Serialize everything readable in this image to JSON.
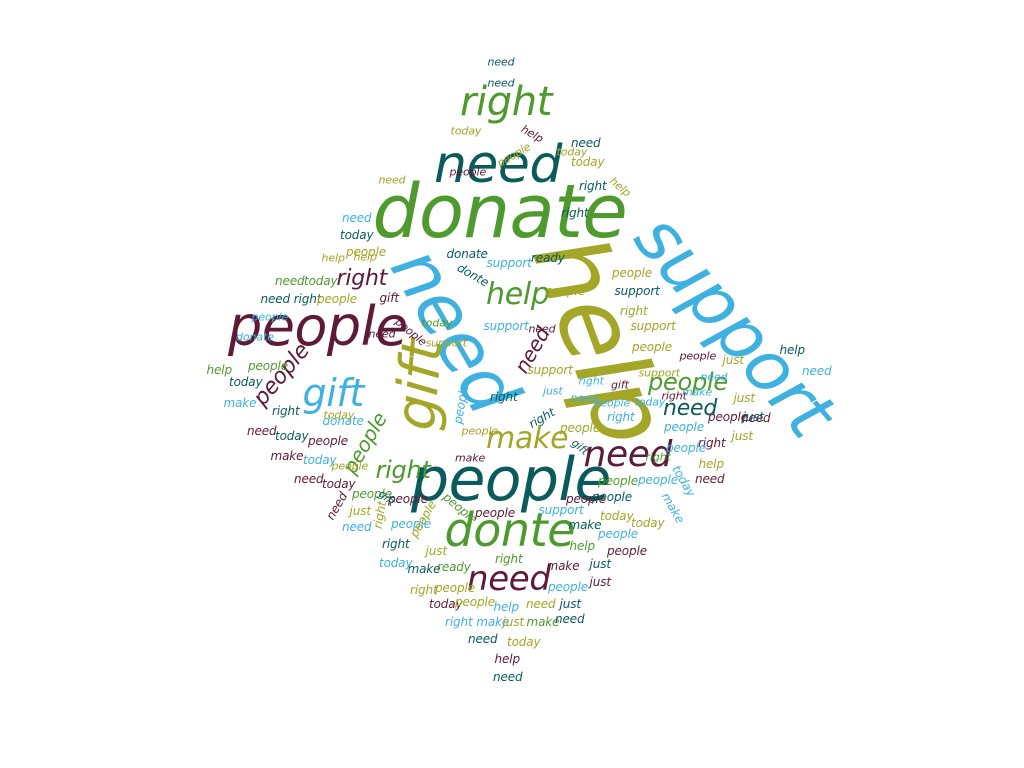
{
  "colors": {
    "maroon": "#5e1a37",
    "olive": "#a3a626",
    "green": "#4e9a2e",
    "teal": "#0b5a5c",
    "sky": "#3eb1e0"
  },
  "words": [
    {
      "text": "help",
      "color": "olive"
    },
    {
      "text": "support",
      "color": "sky"
    },
    {
      "text": "donate",
      "color": "green"
    },
    {
      "text": "need",
      "color": "sky"
    },
    {
      "text": "people",
      "color": "teal"
    },
    {
      "text": "need",
      "color": "teal"
    },
    {
      "text": "people",
      "color": "maroon"
    },
    {
      "text": "gift",
      "color": "olive"
    },
    {
      "text": "donte",
      "color": "green"
    },
    {
      "text": "right",
      "color": "green"
    },
    {
      "text": "need",
      "color": "maroon"
    },
    {
      "text": "need",
      "color": "maroon"
    },
    {
      "text": "gift",
      "color": "sky"
    },
    {
      "text": "make",
      "color": "olive"
    },
    {
      "text": "help",
      "color": "green"
    },
    {
      "text": "people",
      "color": "green"
    },
    {
      "text": "need",
      "color": "teal"
    },
    {
      "text": "right",
      "color": "green"
    },
    {
      "text": "right",
      "color": "maroon"
    },
    {
      "text": "people",
      "color": "maroon"
    },
    {
      "text": "people",
      "color": "green"
    },
    {
      "text": "need",
      "color": "maroon"
    },
    {
      "text": "need",
      "color": "teal"
    },
    {
      "text": "need",
      "color": "teal"
    },
    {
      "text": "today",
      "color": "olive"
    },
    {
      "text": "help",
      "color": "maroon"
    },
    {
      "text": "need",
      "color": "teal"
    },
    {
      "text": "today",
      "color": "olive"
    },
    {
      "text": "need",
      "color": "olive"
    },
    {
      "text": "right",
      "color": "teal"
    },
    {
      "text": "help",
      "color": "olive"
    },
    {
      "text": "need",
      "color": "sky"
    },
    {
      "text": "today",
      "color": "teal"
    },
    {
      "text": "help",
      "color": "olive"
    },
    {
      "text": "people",
      "color": "olive"
    },
    {
      "text": "donate",
      "color": "teal"
    },
    {
      "text": "need",
      "color": "green"
    },
    {
      "text": "today",
      "color": "green"
    },
    {
      "text": "need right",
      "color": "teal"
    },
    {
      "text": "people",
      "color": "olive"
    },
    {
      "text": "gift",
      "color": "maroon"
    },
    {
      "text": "donte",
      "color": "teal"
    },
    {
      "text": "support",
      "color": "sky"
    },
    {
      "text": "ready",
      "color": "teal"
    },
    {
      "text": "people",
      "color": "olive"
    },
    {
      "text": "people",
      "color": "olive"
    },
    {
      "text": "support",
      "color": "teal"
    },
    {
      "text": "right",
      "color": "olive"
    },
    {
      "text": "support",
      "color": "olive"
    },
    {
      "text": "people",
      "color": "olive"
    },
    {
      "text": "support",
      "color": "sky"
    },
    {
      "text": "people",
      "color": "maroon"
    },
    {
      "text": "support",
      "color": "olive"
    },
    {
      "text": "help",
      "color": "green"
    },
    {
      "text": "people",
      "color": "green"
    },
    {
      "text": "today",
      "color": "teal"
    },
    {
      "text": "make",
      "color": "sky"
    },
    {
      "text": "right",
      "color": "teal"
    },
    {
      "text": "people",
      "color": "sky"
    },
    {
      "text": "right",
      "color": "teal"
    },
    {
      "text": "right",
      "color": "sky"
    },
    {
      "text": "right",
      "color": "teal"
    },
    {
      "text": "need",
      "color": "maroon"
    },
    {
      "text": "today",
      "color": "teal"
    },
    {
      "text": "people",
      "color": "maroon"
    },
    {
      "text": "donate",
      "color": "sky"
    },
    {
      "text": "make",
      "color": "maroon"
    },
    {
      "text": "today",
      "color": "sky"
    },
    {
      "text": "people",
      "color": "olive"
    },
    {
      "text": "people",
      "color": "olive"
    },
    {
      "text": "gift",
      "color": "teal"
    },
    {
      "text": "just",
      "color": "olive"
    },
    {
      "text": "need",
      "color": "maroon"
    },
    {
      "text": "help",
      "color": "teal"
    },
    {
      "text": "need",
      "color": "sky"
    },
    {
      "text": "just",
      "color": "olive"
    },
    {
      "text": "people",
      "color": "maroon"
    },
    {
      "text": "just",
      "color": "teal"
    },
    {
      "text": "just",
      "color": "olive"
    },
    {
      "text": "people",
      "color": "sky"
    },
    {
      "text": "right",
      "color": "maroon"
    },
    {
      "text": "help",
      "color": "olive"
    },
    {
      "text": "people",
      "color": "sky"
    },
    {
      "text": "today",
      "color": "sky"
    },
    {
      "text": "need",
      "color": "maroon"
    },
    {
      "text": "make",
      "color": "sky"
    },
    {
      "text": "need",
      "color": "maroon"
    },
    {
      "text": "today",
      "color": "maroon"
    },
    {
      "text": "people",
      "color": "green"
    },
    {
      "text": "people",
      "color": "maroon"
    },
    {
      "text": "right",
      "color": "olive"
    },
    {
      "text": "gift",
      "color": "teal"
    },
    {
      "text": "need",
      "color": "maroon"
    },
    {
      "text": "just",
      "color": "olive"
    },
    {
      "text": "need",
      "color": "sky"
    },
    {
      "text": "people",
      "color": "sky"
    },
    {
      "text": "people",
      "color": "olive"
    },
    {
      "text": "support",
      "color": "sky"
    },
    {
      "text": "people",
      "color": "maroon"
    },
    {
      "text": "people",
      "color": "teal"
    },
    {
      "text": "people",
      "color": "green"
    },
    {
      "text": "people",
      "color": "sky"
    },
    {
      "text": "today",
      "color": "olive"
    },
    {
      "text": "today",
      "color": "olive"
    },
    {
      "text": "people",
      "color": "green"
    },
    {
      "text": "people",
      "color": "maroon"
    },
    {
      "text": "right",
      "color": "teal"
    },
    {
      "text": "just",
      "color": "olive"
    },
    {
      "text": "make",
      "color": "teal"
    },
    {
      "text": "help",
      "color": "green"
    },
    {
      "text": "people",
      "color": "sky"
    },
    {
      "text": "people",
      "color": "maroon"
    },
    {
      "text": "today",
      "color": "sky"
    },
    {
      "text": "make",
      "color": "teal"
    },
    {
      "text": "ready",
      "color": "green"
    },
    {
      "text": "right",
      "color": "green"
    },
    {
      "text": "make",
      "color": "maroon"
    },
    {
      "text": "just",
      "color": "teal"
    },
    {
      "text": "right",
      "color": "olive"
    },
    {
      "text": "people",
      "color": "olive"
    },
    {
      "text": "people",
      "color": "sky"
    },
    {
      "text": "just",
      "color": "maroon"
    },
    {
      "text": "today",
      "color": "maroon"
    },
    {
      "text": "people",
      "color": "olive"
    },
    {
      "text": "help",
      "color": "sky"
    },
    {
      "text": "need",
      "color": "olive"
    },
    {
      "text": "just",
      "color": "teal"
    },
    {
      "text": "right make",
      "color": "sky"
    },
    {
      "text": "just",
      "color": "olive"
    },
    {
      "text": "make",
      "color": "green"
    },
    {
      "text": "need",
      "color": "teal"
    },
    {
      "text": "need",
      "color": "teal"
    },
    {
      "text": "today",
      "color": "olive"
    },
    {
      "text": "help",
      "color": "maroon"
    },
    {
      "text": "need",
      "color": "teal"
    },
    {
      "text": "help",
      "color": "olive"
    },
    {
      "text": "today",
      "color": "olive"
    },
    {
      "text": "right",
      "color": "teal"
    },
    {
      "text": "people",
      "color": "olive"
    },
    {
      "text": "people",
      "color": "maroon"
    },
    {
      "text": "today",
      "color": "green"
    },
    {
      "text": "support",
      "color": "olive"
    },
    {
      "text": "people",
      "color": "sky"
    },
    {
      "text": "donate",
      "color": "sky"
    },
    {
      "text": "need",
      "color": "maroon"
    },
    {
      "text": "today",
      "color": "olive"
    },
    {
      "text": "just",
      "color": "sky"
    },
    {
      "text": "need",
      "color": "maroon"
    },
    {
      "text": "right",
      "color": "sky"
    },
    {
      "text": "need",
      "color": "sky"
    },
    {
      "text": "people",
      "color": "olive"
    },
    {
      "text": "make",
      "color": "maroon"
    },
    {
      "text": "gift",
      "color": "maroon"
    },
    {
      "text": "people",
      "color": "sky"
    },
    {
      "text": "people",
      "color": "maroon"
    },
    {
      "text": "need",
      "color": "sky"
    },
    {
      "text": "make",
      "color": "sky"
    },
    {
      "text": "support",
      "color": "olive"
    },
    {
      "text": "right",
      "color": "maroon"
    },
    {
      "text": "today",
      "color": "sky"
    },
    {
      "text": "right",
      "color": "green"
    }
  ]
}
